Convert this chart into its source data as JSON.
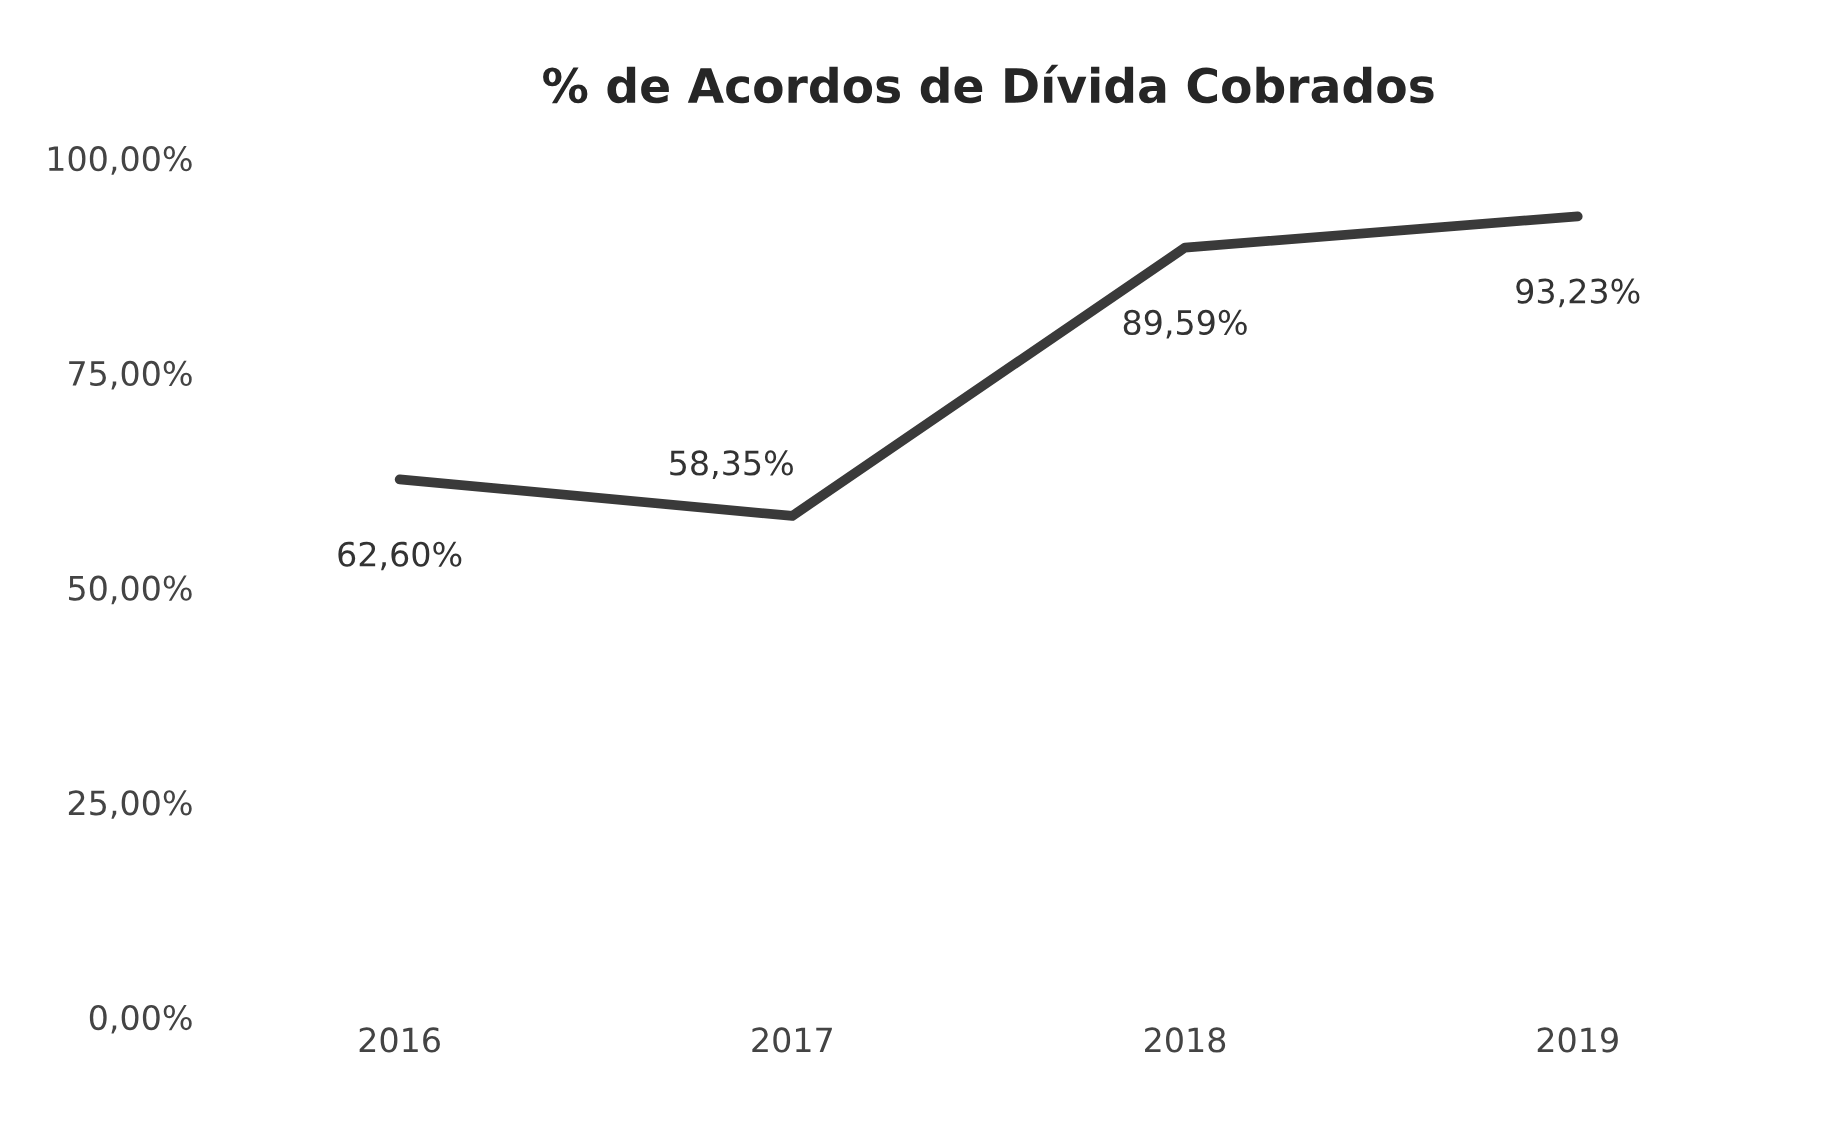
{
  "chart_data": {
    "type": "line",
    "title": "% de Acordos de Dívida Cobrados",
    "categories": [
      "2016",
      "2017",
      "2018",
      "2019"
    ],
    "series": [
      {
        "color": "#3a3a3a",
        "values": [
          62.6,
          58.35,
          89.59,
          93.23
        ],
        "value_labels": [
          "62,60%",
          "58,35%",
          "89,59%",
          "93,23%"
        ]
      }
    ],
    "ylim": [
      0,
      100
    ],
    "yticks": [
      {
        "value": 0,
        "label": "0,00%"
      },
      {
        "value": 25,
        "label": "25,00%"
      },
      {
        "value": 50,
        "label": "50,00%"
      },
      {
        "value": 75,
        "label": "75,00%"
      },
      {
        "value": 100,
        "label": "100,00%"
      }
    ],
    "grid": false,
    "marker": "none",
    "line_style": "solid"
  }
}
